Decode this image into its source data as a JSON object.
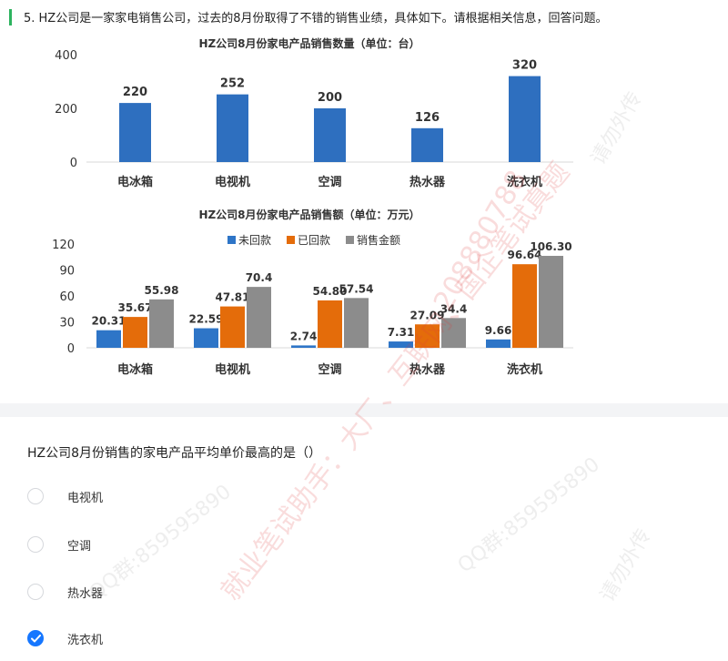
{
  "question": {
    "text": "5.  HZ公司是一家家电销售公司，过去的8月份取得了不错的销售业绩，具体如下。请根据相关信息，回答问题。"
  },
  "chart_data": [
    {
      "type": "bar",
      "title": "HZ公司8月份家电产品销售数量（单位：台）",
      "categories": [
        "电冰箱",
        "电视机",
        "空调",
        "热水器",
        "洗衣机"
      ],
      "values": [
        220,
        252,
        200,
        126,
        320
      ],
      "data_labels": [
        "220",
        "252",
        "200",
        "126",
        "320"
      ],
      "ylim": [
        0,
        400
      ],
      "yticks": [
        "0",
        "200",
        "400"
      ],
      "color": "#2e6fbf",
      "grid": false
    },
    {
      "type": "bar",
      "title": "HZ公司8月份家电产品销售额（单位：万元）",
      "categories": [
        "电冰箱",
        "电视机",
        "空调",
        "热水器",
        "洗衣机"
      ],
      "series": [
        {
          "name": "未回款",
          "color": "#2e75c7",
          "values": [
            20.31,
            22.59,
            2.74,
            7.31,
            9.66
          ],
          "labels": [
            "20.31",
            "22.59",
            "2.74",
            "7.31",
            "9.66"
          ]
        },
        {
          "name": "已回款",
          "color": "#e46c0a",
          "values": [
            35.67,
            47.81,
            54.8,
            27.09,
            96.64
          ],
          "labels": [
            "35.67",
            "47.81",
            "54.80",
            "27.09",
            "96.64"
          ]
        },
        {
          "name": "销售金额",
          "color": "#8c8c8c",
          "values": [
            55.98,
            70.4,
            57.54,
            34.4,
            106.3
          ],
          "labels": [
            "55.98",
            "70.4",
            "57.54",
            "34.4",
            "106.30"
          ]
        }
      ],
      "ylim": [
        0,
        120
      ],
      "yticks": [
        "0",
        "30",
        "60",
        "90",
        "120"
      ],
      "legend": "top",
      "grid": false
    }
  ],
  "sub_question": "HZ公司8月份销售的家电产品平均单价最高的是（）",
  "options": [
    {
      "label": "电视机",
      "checked": false
    },
    {
      "label": "空调",
      "checked": false
    },
    {
      "label": "热水器",
      "checked": false
    },
    {
      "label": "洗衣机",
      "checked": true
    }
  ],
  "colors": {
    "accent": "#2db35f",
    "radio_checked": "#1677ff"
  },
  "watermarks": [
    "就业笔试助手：大厂、互联网、国企笔试真题",
    "208880788",
    "请勿外传",
    "QQ群:859595890"
  ]
}
